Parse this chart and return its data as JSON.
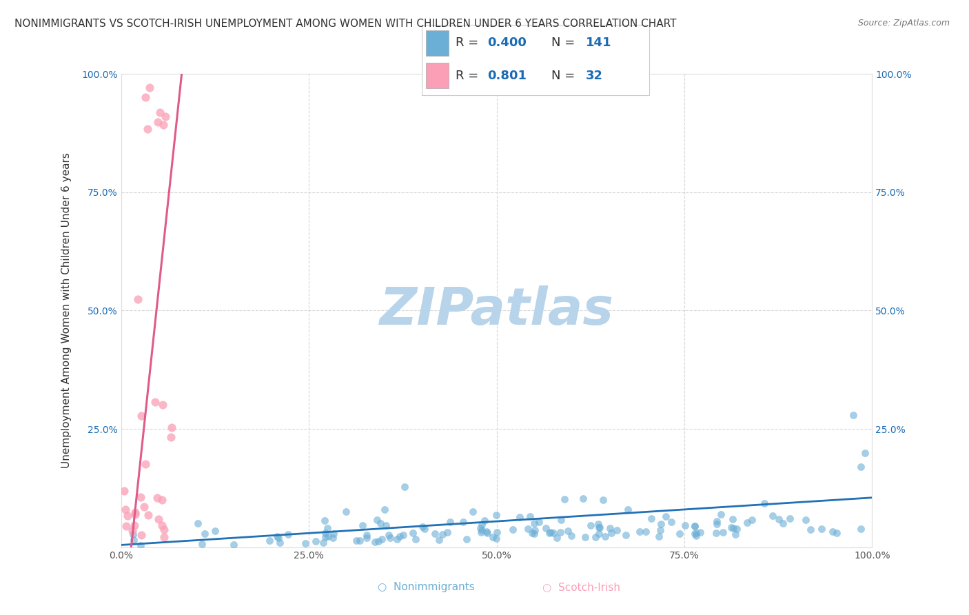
{
  "title": "NONIMMIGRANTS VS SCOTCH-IRISH UNEMPLOYMENT AMONG WOMEN WITH CHILDREN UNDER 6 YEARS CORRELATION CHART",
  "source": "Source: ZipAtlas.com",
  "ylabel": "Unemployment Among Women with Children Under 6 years",
  "xlim": [
    0,
    1
  ],
  "ylim": [
    0,
    1
  ],
  "xtick_labels": [
    "0.0%",
    "25.0%",
    "50.0%",
    "75.0%",
    "100.0%"
  ],
  "ytick_labels": [
    "",
    "25.0%",
    "50.0%",
    "75.0%",
    "100.0%"
  ],
  "blue_R": 0.4,
  "blue_N": 141,
  "pink_R": 0.801,
  "pink_N": 32,
  "blue_color": "#6baed6",
  "pink_color": "#fa9fb5",
  "blue_line_color": "#2171b5",
  "pink_line_color": "#e05a8a",
  "watermark": "ZIPatlas",
  "watermark_color": "#b8d4ea",
  "background_color": "#ffffff",
  "grid_color": "#cccccc",
  "title_fontsize": 11,
  "legend_color": "#1a6bb5"
}
